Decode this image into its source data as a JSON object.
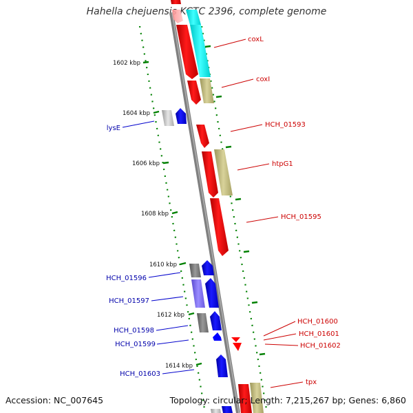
{
  "title": "Hahella chejuensis KCTC 2396, complete genome",
  "footer": {
    "accession": "Accession: NC_007645",
    "summary": "Topology: circular; Length: 7,215,267 bp; Genes: 6,860"
  },
  "colors": {
    "red": "#ff0000",
    "blue": "#0000ff",
    "cyan": "#00ffff",
    "tan": "#bdb76b",
    "gray": "#808080",
    "slate": "#7b68ee",
    "ticks": "#007700",
    "backbone": "#808080"
  },
  "ticks": [
    "1602 kbp",
    "1604 kbp",
    "1606 kbp",
    "1608 kbp",
    "1610 kbp",
    "1612 kbp",
    "1614 kbp"
  ],
  "genes_right": [
    "coxL",
    "coxI",
    "HCH_01593",
    "htpG1",
    "HCH_01595",
    "HCH_01600",
    "HCH_01601",
    "HCH_01602",
    "tpx"
  ],
  "genes_left": [
    "lysE",
    "HCH_01596",
    "HCH_01597",
    "HCH_01598",
    "HCH_01599",
    "HCH_01603"
  ]
}
